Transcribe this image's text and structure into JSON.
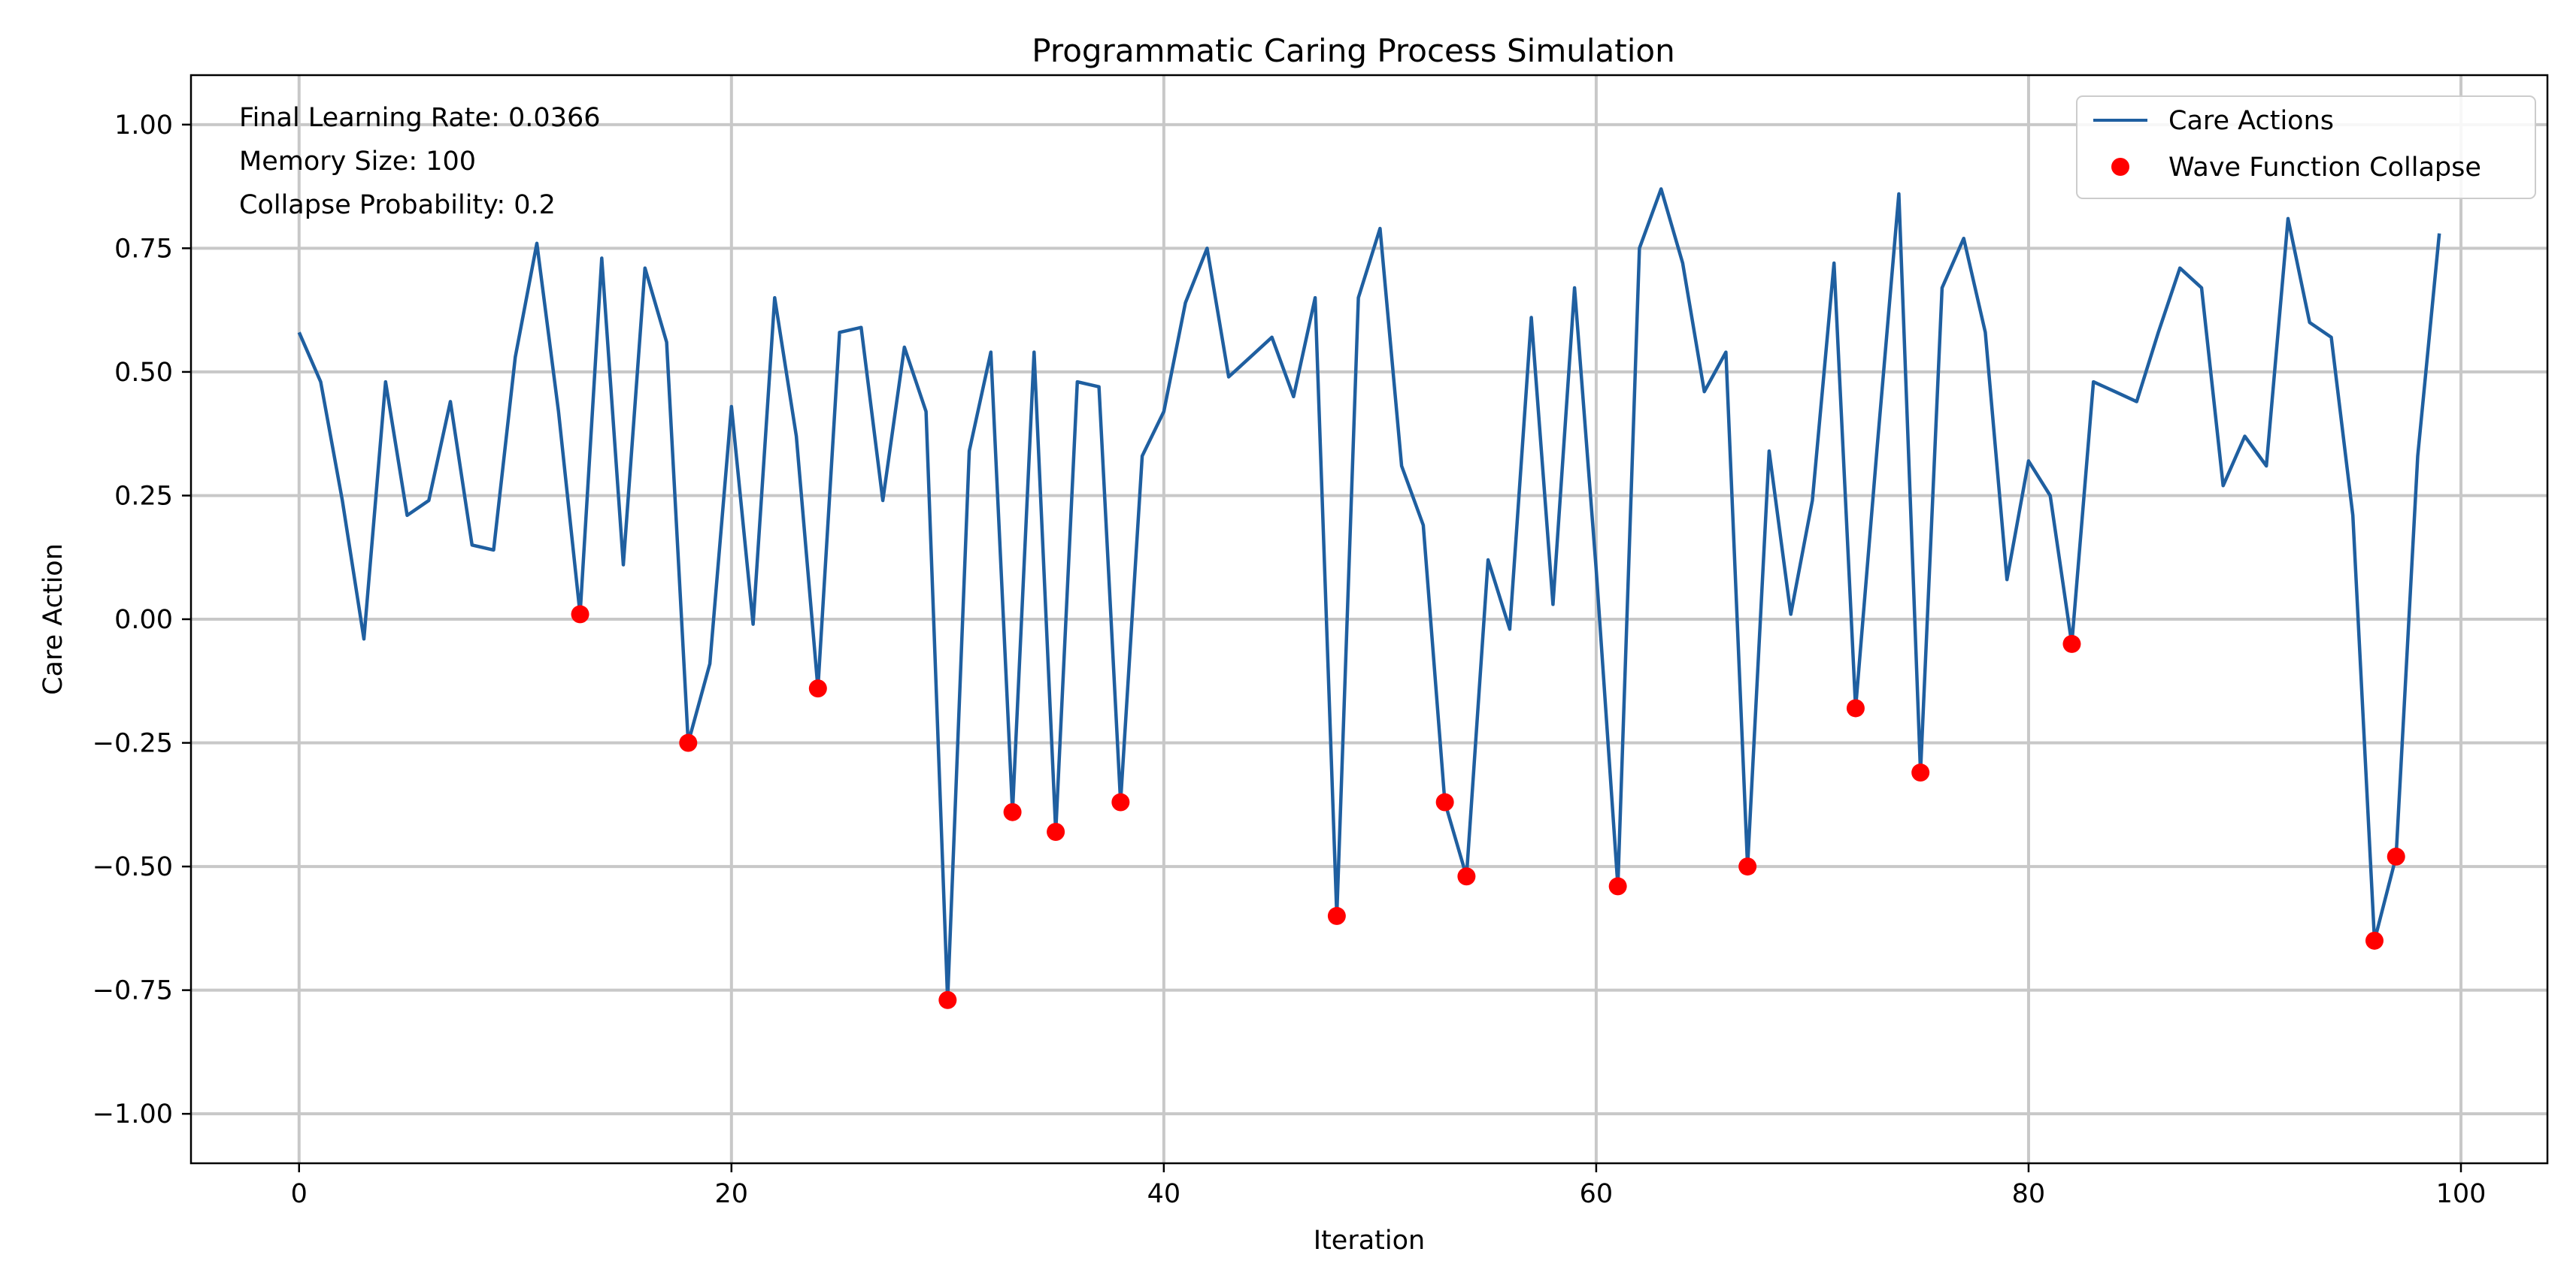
{
  "chart_data": {
    "type": "line",
    "title": "Programmatic Caring Process Simulation",
    "xlabel": "Iteration",
    "ylabel": "Care Action",
    "xlim": [
      -5,
      104
    ],
    "ylim": [
      -1.1,
      1.1
    ],
    "xticks": [
      0,
      20,
      40,
      60,
      80,
      100
    ],
    "xtick_labels": [
      "0",
      "20",
      "40",
      "60",
      "80",
      "100"
    ],
    "yticks": [
      1.0,
      0.75,
      0.5,
      0.25,
      0.0,
      -0.25,
      -0.5,
      -0.75,
      -1.0
    ],
    "ytick_labels": [
      "1.00",
      "0.75",
      "0.50",
      "0.25",
      "0.00",
      "−0.25",
      "−0.50",
      "−0.75",
      "−1.00"
    ],
    "grid": true,
    "legend_position": "top-right",
    "line_color": "#1f5fa0",
    "marker_color": "#ff0000",
    "series": [
      {
        "name": "Care Actions",
        "kind": "line",
        "x": [
          0,
          1,
          2,
          3,
          4,
          5,
          6,
          7,
          8,
          9,
          10,
          11,
          12,
          13,
          14,
          15,
          16,
          17,
          18,
          19,
          20,
          21,
          22,
          23,
          24,
          25,
          26,
          27,
          28,
          29,
          30,
          31,
          32,
          33,
          34,
          35,
          36,
          37,
          38,
          39,
          40,
          41,
          42,
          43,
          44,
          45,
          46,
          47,
          48,
          49,
          50,
          51,
          52,
          53,
          54,
          55,
          56,
          57,
          58,
          59,
          60,
          61,
          62,
          63,
          64,
          65,
          66,
          67,
          68,
          69,
          70,
          71,
          72,
          73,
          74,
          75,
          76,
          77,
          78,
          79,
          80,
          81,
          82,
          83,
          84,
          85,
          86,
          87,
          88,
          89,
          90,
          91,
          92,
          93,
          94,
          95,
          96,
          97,
          98,
          99
        ],
        "values": [
          0.58,
          0.48,
          0.24,
          -0.04,
          0.48,
          0.21,
          0.24,
          0.44,
          0.15,
          0.14,
          0.53,
          0.76,
          0.42,
          0.01,
          0.73,
          0.11,
          0.71,
          0.56,
          -0.25,
          -0.09,
          0.43,
          -0.01,
          0.65,
          0.37,
          -0.14,
          0.58,
          0.59,
          0.24,
          0.55,
          0.42,
          -0.77,
          0.34,
          0.54,
          -0.39,
          0.54,
          -0.43,
          0.48,
          0.47,
          -0.37,
          0.33,
          0.42,
          0.64,
          0.75,
          0.49,
          0.53,
          0.57,
          0.45,
          0.65,
          -0.6,
          0.65,
          0.79,
          0.31,
          0.19,
          -0.37,
          -0.52,
          0.12,
          -0.02,
          0.61,
          0.03,
          0.67,
          0.1,
          -0.54,
          0.75,
          0.87,
          0.72,
          0.46,
          0.54,
          -0.5,
          0.34,
          0.01,
          0.24,
          0.72,
          -0.18,
          0.35,
          0.86,
          -0.31,
          0.67,
          0.77,
          0.58,
          0.08,
          0.32,
          0.25,
          -0.05,
          0.48,
          0.46,
          0.44,
          0.58,
          0.71,
          0.67,
          0.27,
          0.37,
          0.31,
          0.81,
          0.6,
          0.57,
          0.21,
          -0.65,
          -0.48,
          0.33,
          0.78
        ]
      },
      {
        "name": "Wave Function Collapse",
        "kind": "scatter",
        "x": [
          13,
          18,
          24,
          30,
          33,
          35,
          38,
          48,
          53,
          54,
          61,
          67,
          72,
          75,
          82,
          96,
          97
        ],
        "values": [
          0.01,
          -0.25,
          -0.14,
          -0.77,
          -0.39,
          -0.43,
          -0.37,
          -0.6,
          -0.37,
          -0.52,
          -0.54,
          -0.5,
          -0.18,
          -0.31,
          -0.05,
          -0.65,
          -0.48
        ]
      }
    ],
    "annotations": [
      "Final Learning Rate: 0.0366",
      "Memory Size: 100",
      "Collapse Probability: 0.2"
    ]
  }
}
